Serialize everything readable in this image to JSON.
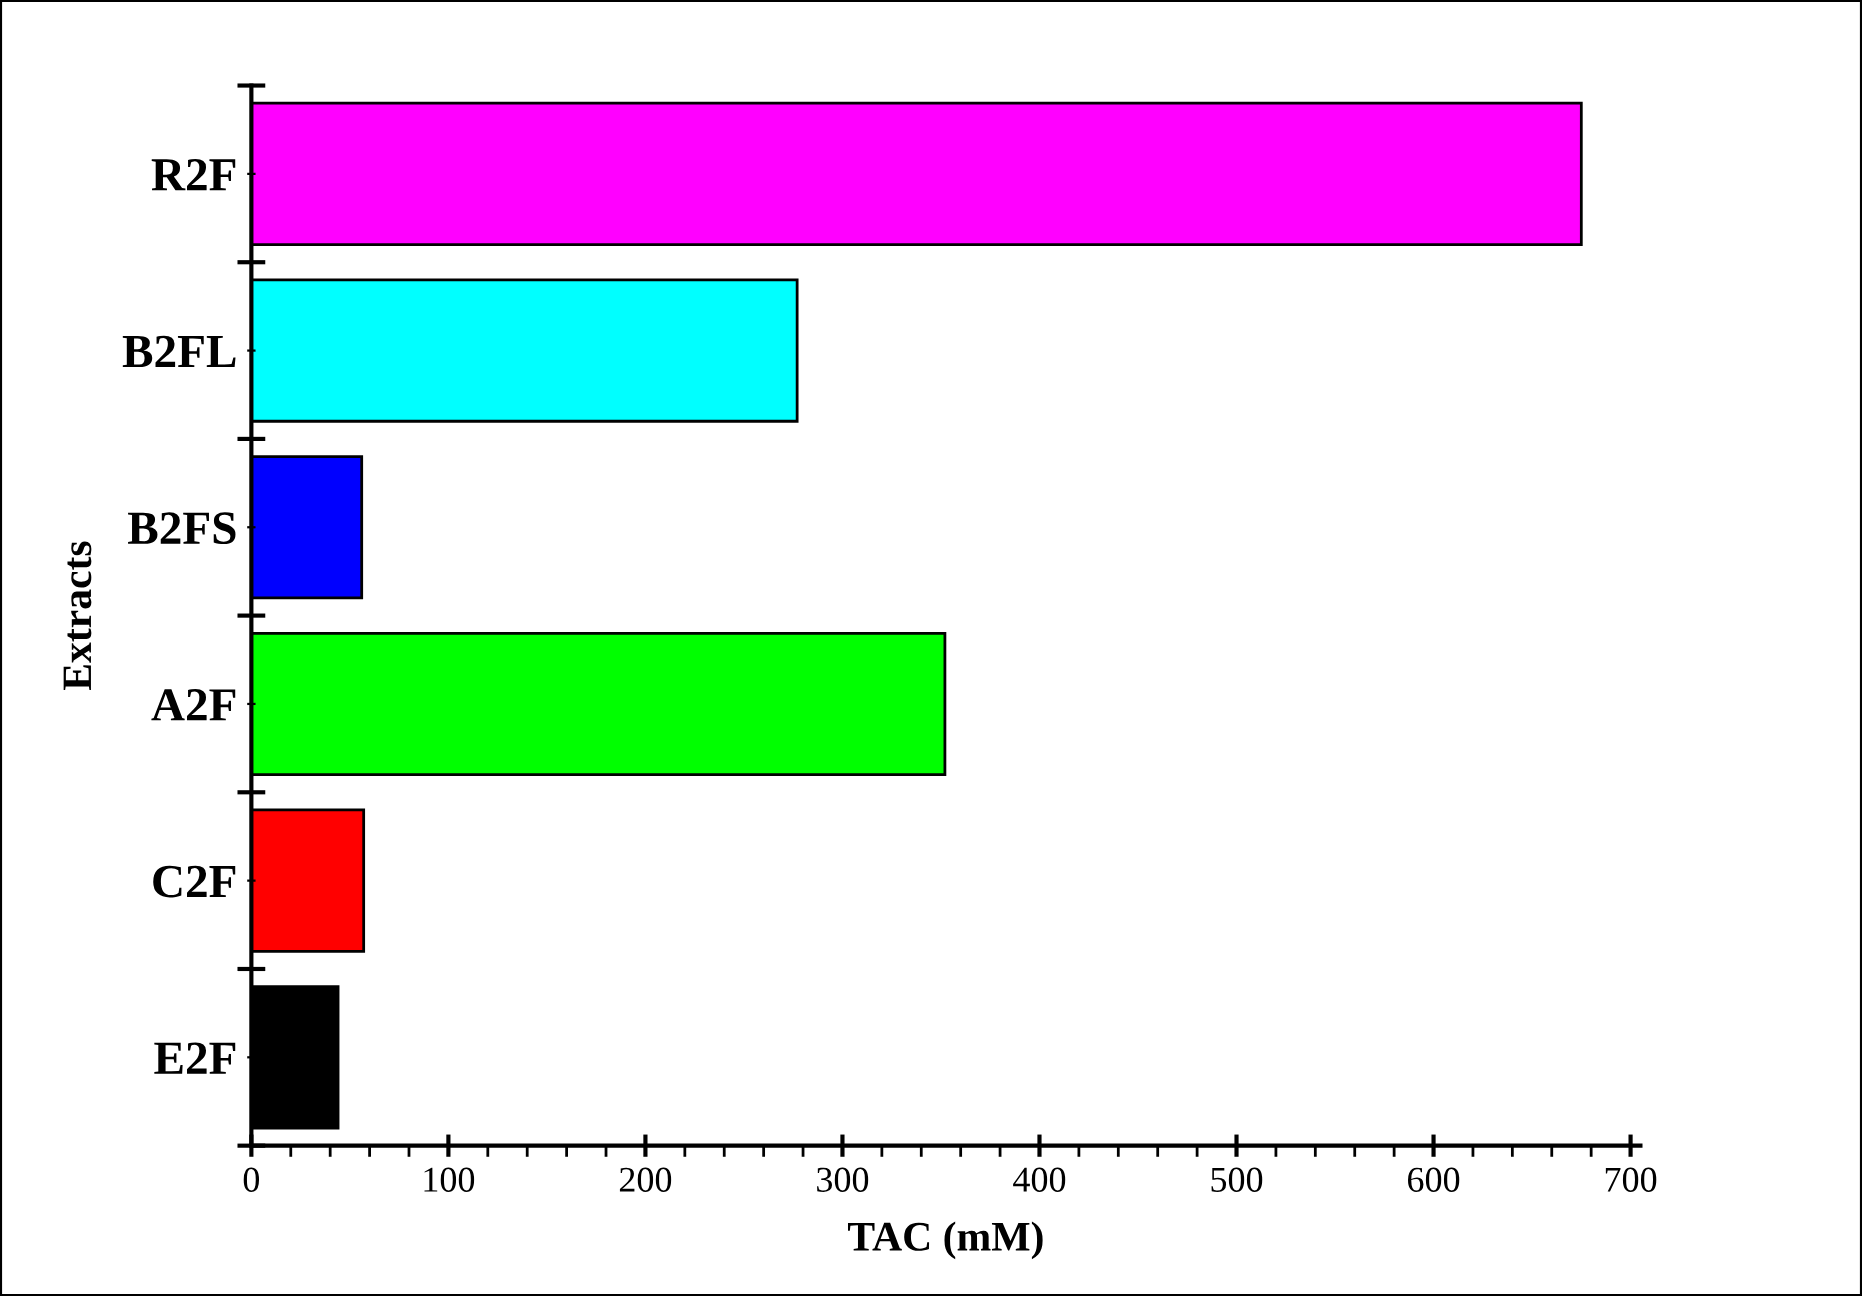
{
  "chart_data": {
    "type": "bar",
    "orientation": "horizontal",
    "xlabel": "TAC (mM)",
    "ylabel": "Extracts",
    "categories": [
      "R2F",
      "B2FL",
      "B2FS",
      "A2F",
      "C2F",
      "E2F"
    ],
    "values": [
      675,
      277,
      56,
      352,
      57,
      44
    ],
    "colors": [
      "#ff00ff",
      "#00ffff",
      "#0000ff",
      "#00ff00",
      "#ff0000",
      "#000000"
    ],
    "xlim": [
      0,
      705
    ],
    "xticks": [
      0,
      100,
      200,
      300,
      400,
      500,
      600,
      700
    ],
    "grid": false,
    "legend": false
  }
}
